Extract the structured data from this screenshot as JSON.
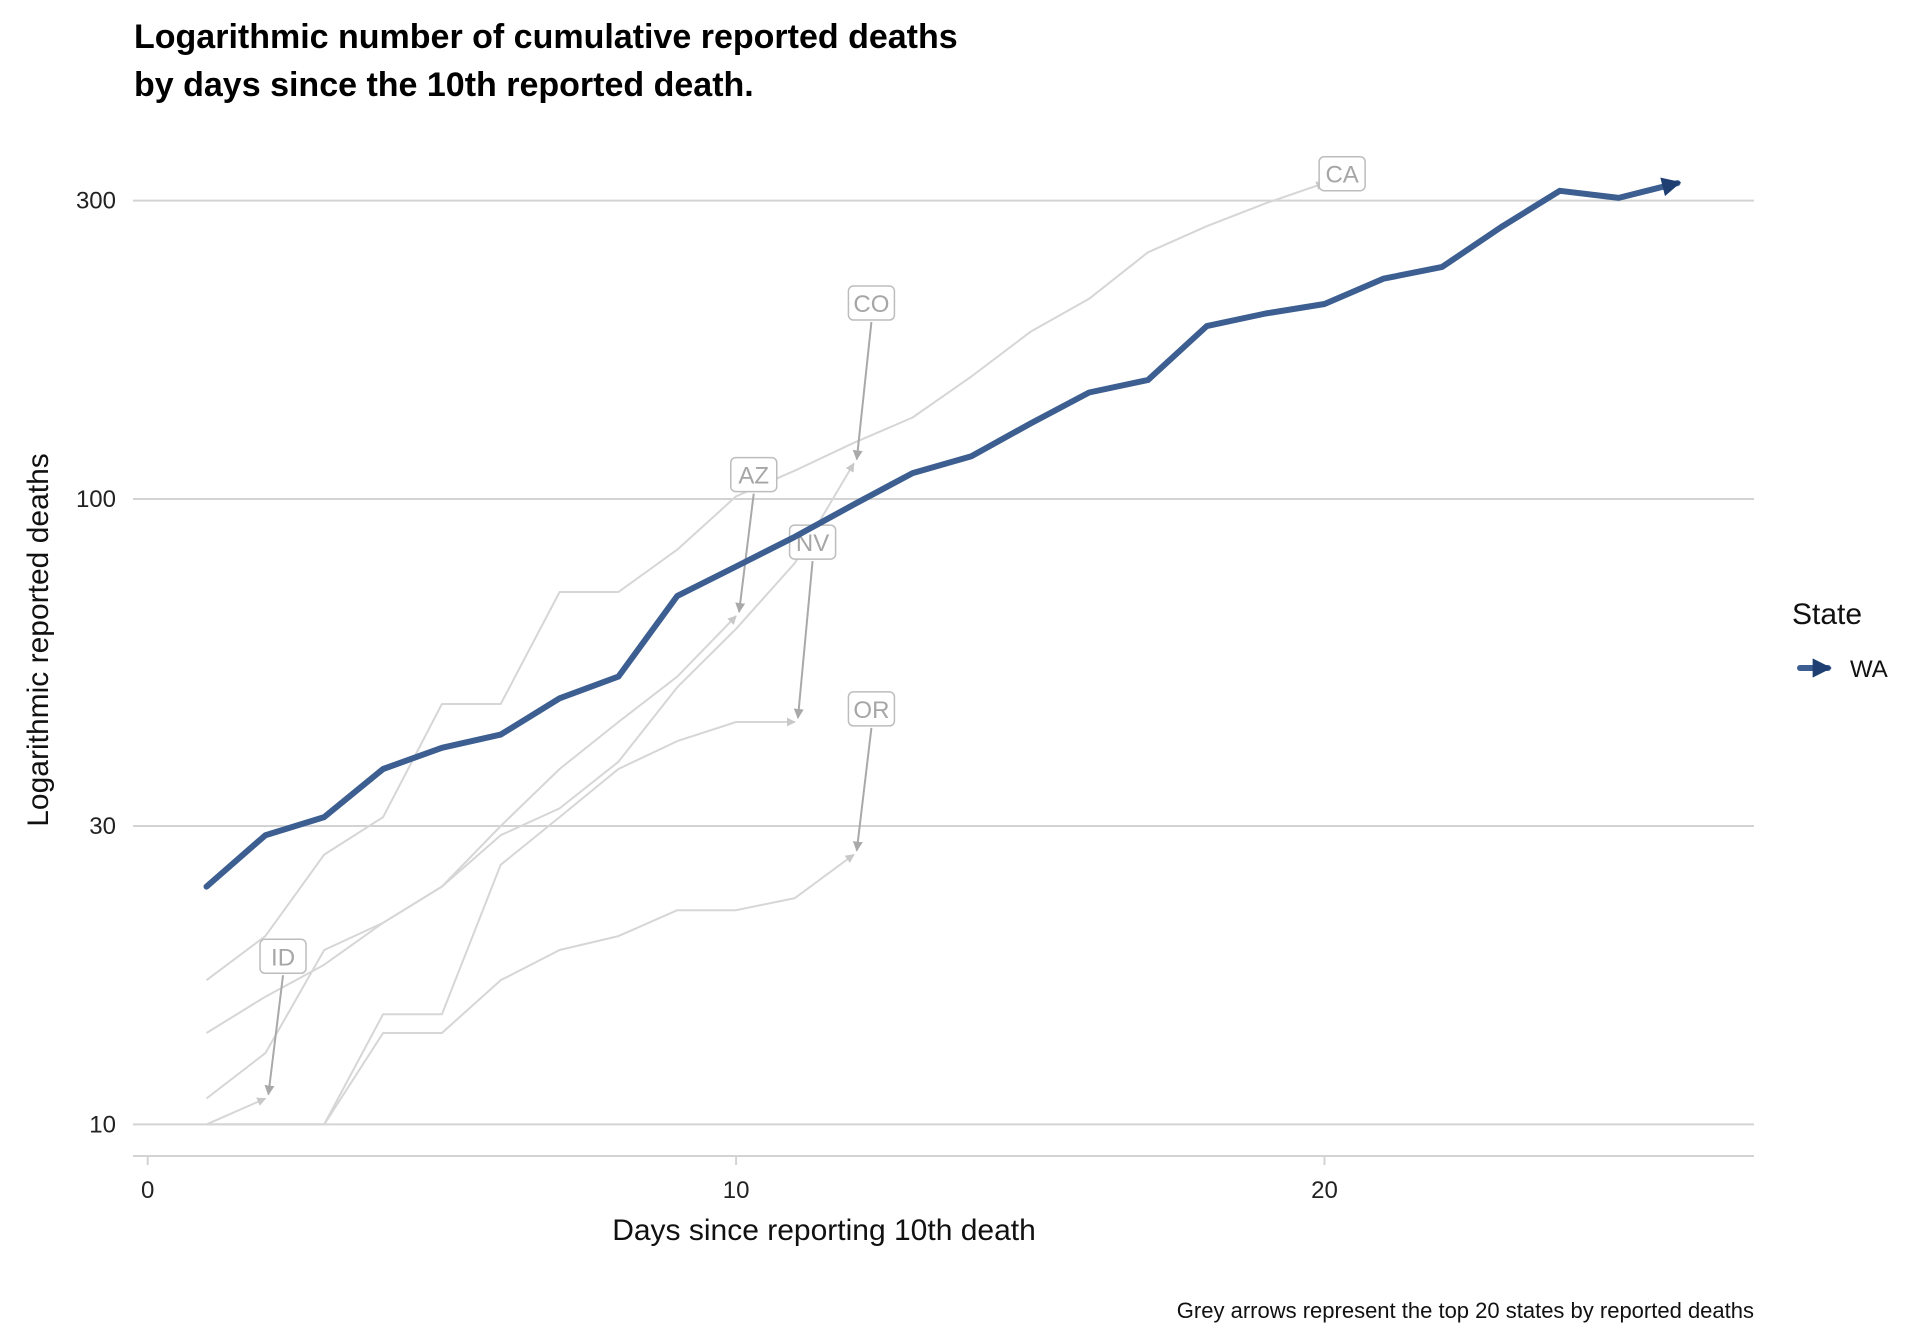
{
  "chart_data": {
    "type": "line",
    "title_line1": "Logarithmic number of cumulative reported deaths",
    "title_line2": "by days since the 10th reported death.",
    "xlabel": "Days since reporting 10th death",
    "ylabel": "Logarithmic reported deaths",
    "caption": "Grey arrows represent the top 20 states by reported deaths",
    "x_scale": "linear",
    "y_scale": "log",
    "xlim": [
      -0.25,
      27.3
    ],
    "ylim": [
      8.9,
      375
    ],
    "x_ticks": [
      0,
      10,
      20
    ],
    "x_tick_labels": [
      "0",
      "10",
      "20"
    ],
    "y_ticks": [
      10,
      30,
      100,
      300
    ],
    "y_tick_labels": [
      "10",
      "30",
      "100",
      "300"
    ],
    "grid": "horizontal major",
    "legend": {
      "title": "State",
      "placement": "right",
      "items": [
        {
          "label": "WA",
          "color": "#3c5e91"
        }
      ]
    },
    "highlight_series": {
      "name": "WA",
      "color": "#3c5e91",
      "x": [
        1,
        2,
        3,
        4,
        5,
        6,
        7,
        8,
        9,
        10,
        11,
        12,
        13,
        14,
        15,
        16,
        17,
        18,
        19,
        20,
        21,
        22,
        23,
        24,
        25,
        26
      ],
      "values": [
        24,
        29,
        31,
        37,
        40,
        42,
        48,
        52,
        70,
        78,
        87,
        98,
        110,
        117,
        132,
        148,
        155,
        189,
        198,
        205,
        225,
        235,
        272,
        311,
        303,
        320
      ]
    },
    "background_series": [
      {
        "label": "CA",
        "x": [
          1,
          2,
          3,
          4,
          5,
          6,
          7,
          8,
          9,
          10,
          11,
          12,
          13,
          14,
          15,
          16,
          17,
          18,
          19,
          20
        ],
        "values": [
          17,
          20,
          27,
          31,
          47,
          47,
          71,
          71,
          83,
          101,
          111,
          123,
          135,
          157,
          185,
          209,
          248,
          273,
          297,
          320
        ]
      },
      {
        "label": "CO",
        "x": [
          1,
          2,
          3,
          4,
          5,
          6,
          7,
          8,
          9,
          10,
          11,
          12
        ],
        "values": [
          11,
          13,
          19,
          21,
          24,
          29,
          32,
          38,
          50,
          62,
          79,
          114
        ]
      },
      {
        "label": "AZ",
        "x": [
          1,
          2,
          3,
          4,
          5,
          6,
          7,
          8,
          9,
          10
        ],
        "values": [
          14,
          16,
          18,
          21,
          24,
          30,
          37,
          44,
          52,
          65
        ]
      },
      {
        "label": "NV",
        "x": [
          1,
          2,
          3,
          4,
          5,
          6,
          7,
          8,
          9,
          10,
          11
        ],
        "values": [
          10,
          10,
          10,
          15,
          15,
          26,
          31,
          37,
          41,
          44,
          44
        ]
      },
      {
        "label": "OR",
        "x": [
          1,
          2,
          3,
          4,
          5,
          6,
          7,
          8,
          9,
          10,
          11,
          12
        ],
        "values": [
          10,
          10,
          10,
          14,
          14,
          17,
          19,
          20,
          22,
          22,
          23,
          27
        ]
      },
      {
        "label": "ID",
        "x": [
          1,
          2
        ],
        "values": [
          10,
          11
        ]
      }
    ],
    "colors": {
      "grid": "#d3d3d3",
      "background_line": "#d6d6d6",
      "pointer": "#a9a9a9",
      "label_text": "#a6a6a6",
      "highlight": "#3c5e91",
      "highlight_arrow": "#1f3f73"
    }
  }
}
